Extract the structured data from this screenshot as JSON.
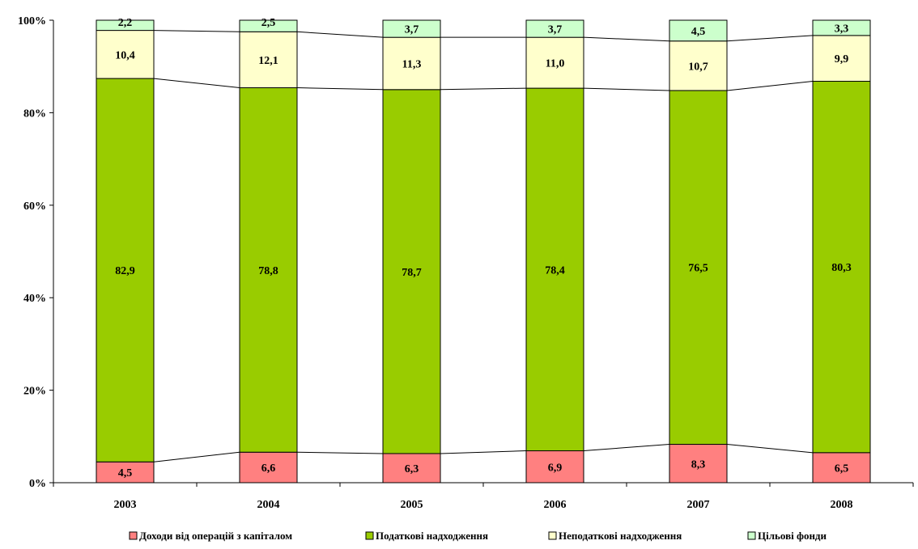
{
  "chart_data": {
    "type": "bar",
    "stacked": true,
    "normalized": true,
    "categories": [
      "2003",
      "2004",
      "2005",
      "2006",
      "2007",
      "2008"
    ],
    "series": [
      {
        "name": "Доходи від операцій з капіталом",
        "color": "#FF8080",
        "values": [
          4.5,
          6.6,
          6.3,
          6.9,
          8.3,
          6.5
        ],
        "labels": [
          "4,5",
          "6,6",
          "6,3",
          "6,9",
          "8,3",
          "6,5"
        ]
      },
      {
        "name": "Податкові надходження",
        "color": "#99CC00",
        "values": [
          82.9,
          78.8,
          78.7,
          78.4,
          76.5,
          80.3
        ],
        "labels": [
          "82,9",
          "78,8",
          "78,7",
          "78,4",
          "76,5",
          "80,3"
        ]
      },
      {
        "name": "Неподаткові надходження",
        "color": "#FFFFCC",
        "values": [
          10.4,
          12.1,
          11.3,
          11.0,
          10.7,
          9.9
        ],
        "labels": [
          "10,4",
          "12,1",
          "11,3",
          "11,0",
          "10,7",
          "9,9"
        ]
      },
      {
        "name": "Цільові фонди",
        "color": "#CCFFCC",
        "values": [
          2.2,
          2.5,
          3.7,
          3.7,
          4.5,
          3.3
        ],
        "labels": [
          "2,2",
          "2,5",
          "3,7",
          "3,7",
          "4,5",
          "3,3"
        ]
      }
    ],
    "y_ticks": [
      "0%",
      "20%",
      "40%",
      "60%",
      "80%",
      "100%"
    ],
    "ylim": [
      0,
      100
    ],
    "series_lines": true,
    "grid": false,
    "legend_position": "bottom"
  }
}
